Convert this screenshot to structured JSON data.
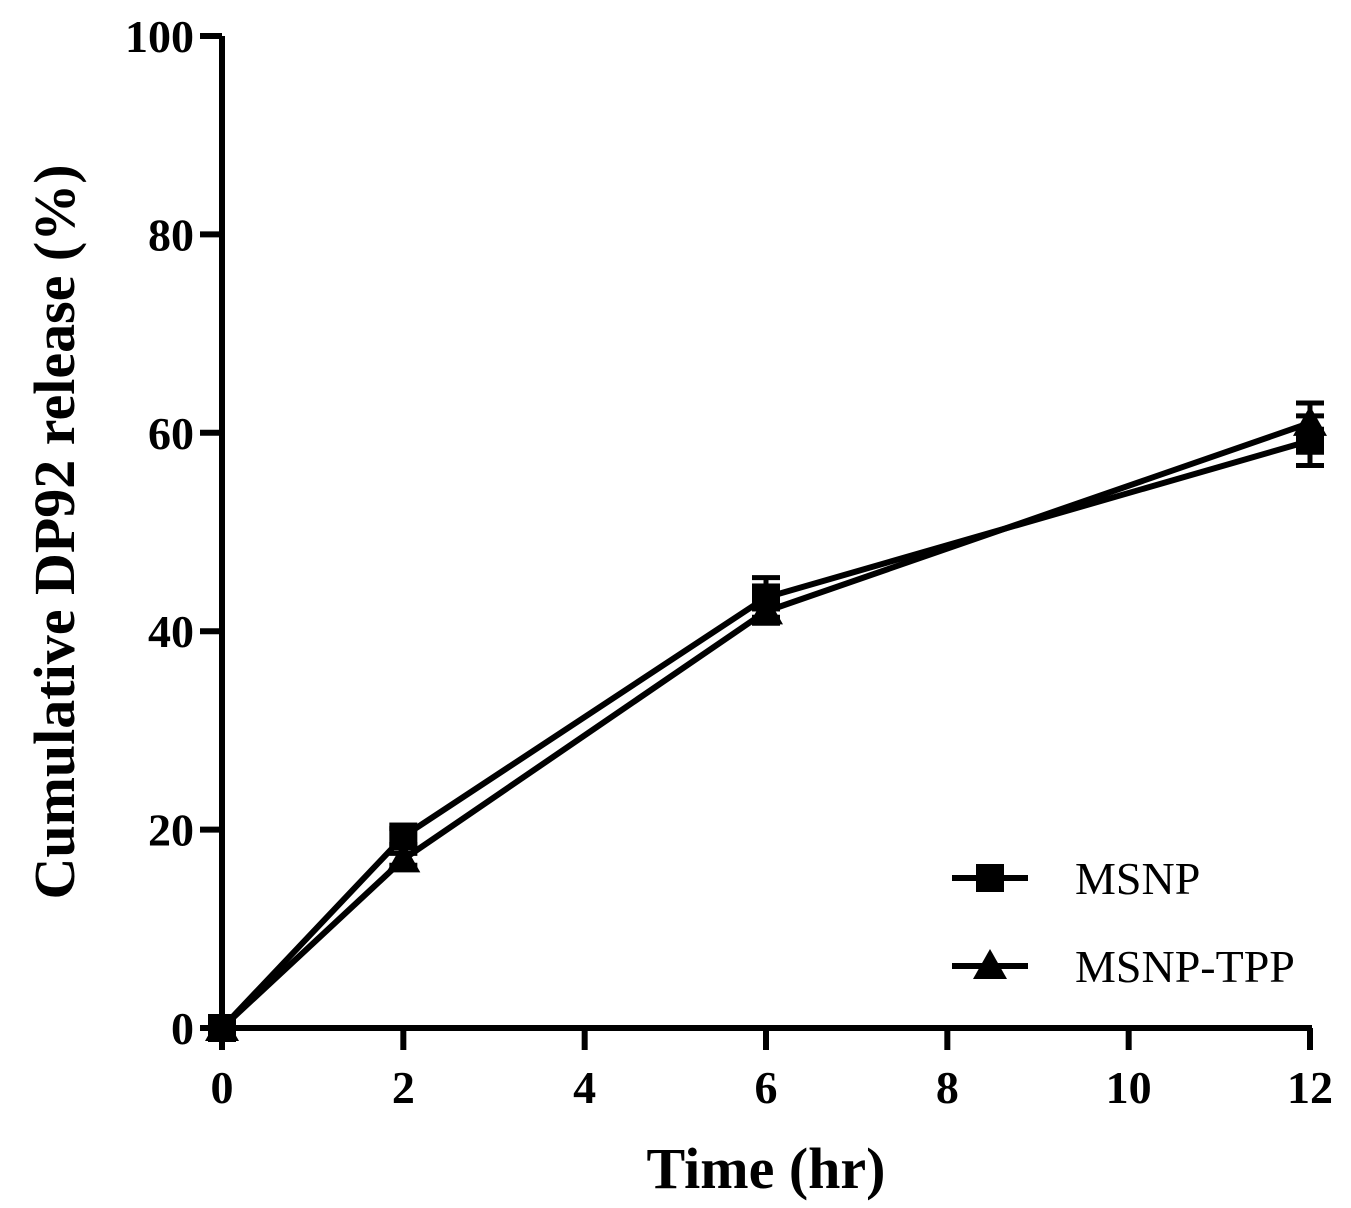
{
  "chart_data": {
    "type": "line",
    "title": "",
    "xlabel": "Time (hr)",
    "ylabel": "Cumulative DP92 release (%)",
    "xlim": [
      0,
      12
    ],
    "ylim": [
      0,
      100
    ],
    "xticks": [
      0,
      2,
      4,
      6,
      8,
      10,
      12
    ],
    "yticks": [
      0,
      20,
      40,
      60,
      80,
      100
    ],
    "grid": false,
    "legend_position": "bottom-right",
    "series": [
      {
        "name": "MSNP",
        "marker": "square",
        "x": [
          0,
          2,
          6,
          12
        ],
        "y": [
          0,
          19.3,
          43.4,
          59.2
        ],
        "error": [
          0,
          0.8,
          2.0,
          2.5
        ]
      },
      {
        "name": "MSNP-TPP",
        "marker": "triangle",
        "x": [
          0,
          2,
          6,
          12
        ],
        "y": [
          0,
          17.0,
          42.0,
          61.0
        ],
        "error": [
          0,
          0.6,
          1.2,
          2.0
        ]
      }
    ]
  }
}
